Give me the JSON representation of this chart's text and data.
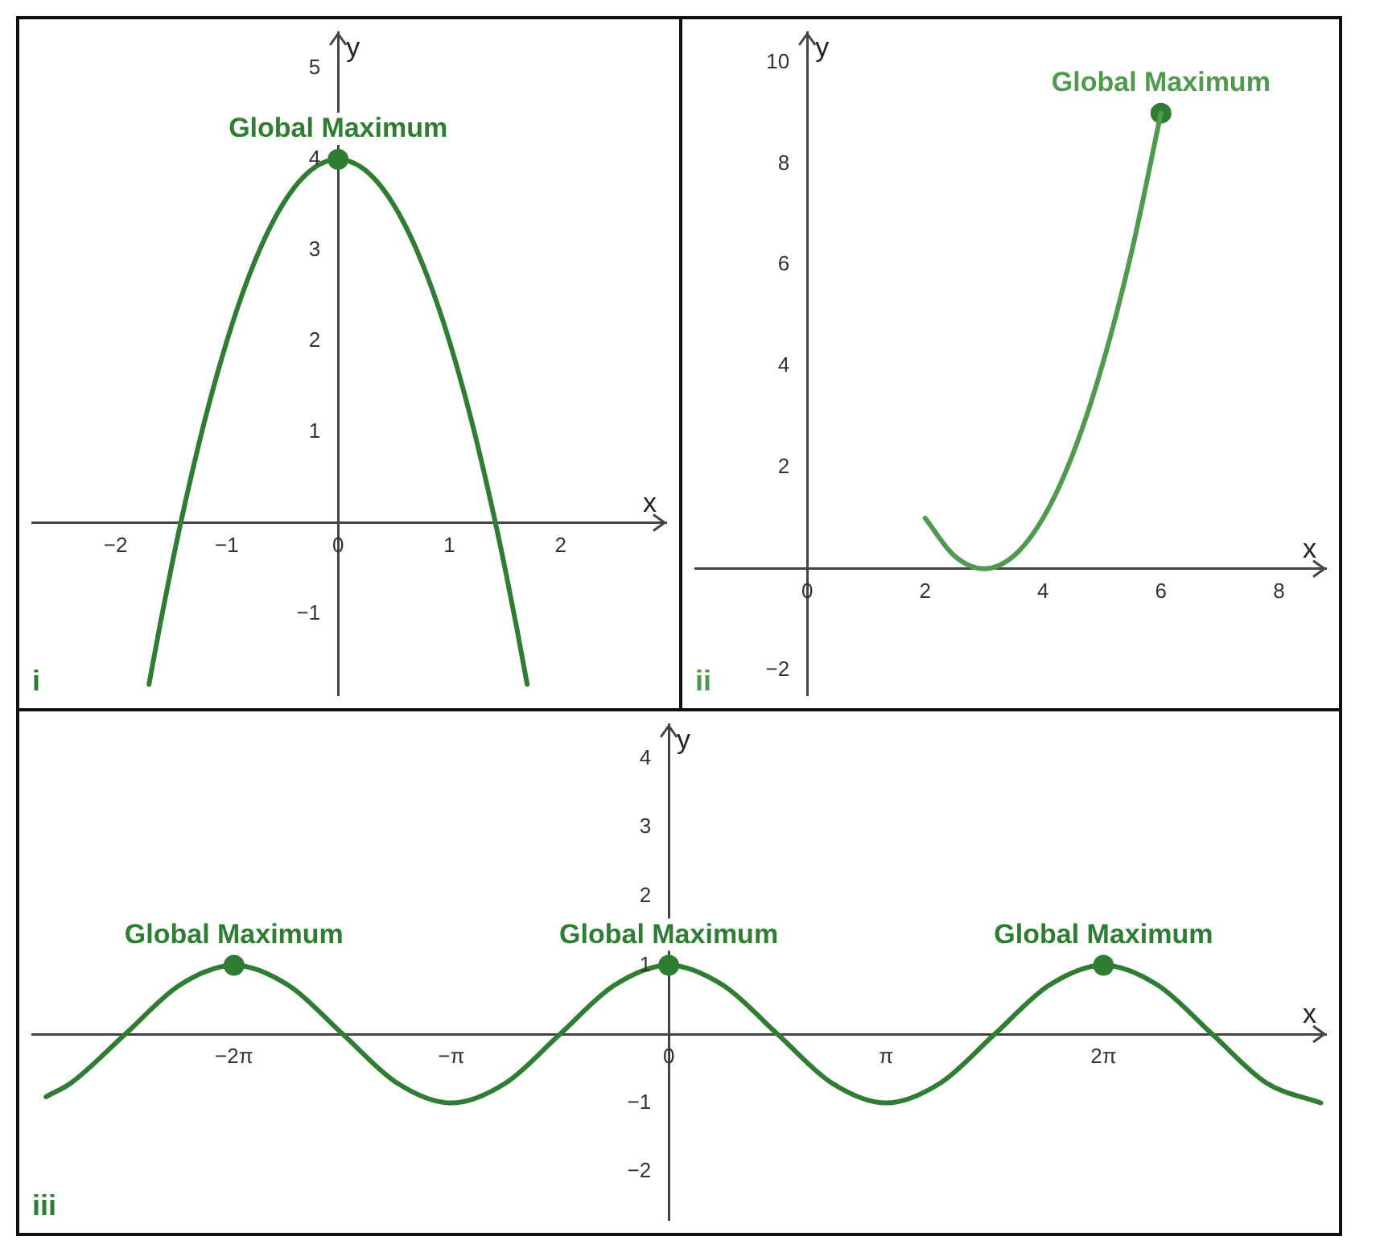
{
  "chart_data": [
    {
      "type": "line",
      "xlabel": "x",
      "ylabel": "y",
      "xlim": [
        -2.75,
        2.95
      ],
      "ylim": [
        -1.9,
        5.4
      ],
      "xticks": [
        -2,
        -1,
        0,
        1,
        2
      ],
      "yticks": [
        -1,
        1,
        2,
        3,
        4,
        5
      ],
      "series": [
        {
          "type": "line",
          "marker": "none",
          "color": "#2e7d32",
          "x": [
            -1.7,
            -1.6,
            -1.5,
            -1.4,
            -1.2,
            -1.0,
            -0.8,
            -0.6,
            -0.4,
            -0.2,
            0,
            0.2,
            0.4,
            0.6,
            0.8,
            1.0,
            1.2,
            1.4,
            1.5,
            1.6,
            1.7
          ],
          "values": [
            -1.78,
            -1.12,
            -0.5,
            0.08,
            1.12,
            2,
            2.72,
            3.28,
            3.68,
            3.92,
            4,
            3.92,
            3.68,
            3.28,
            2.72,
            2,
            1.12,
            0.08,
            -0.5,
            -1.12,
            -1.78
          ]
        },
        {
          "type": "scatter",
          "marker": "circle",
          "color": "#2e7d32",
          "x": [
            0
          ],
          "values": [
            4
          ]
        }
      ],
      "annotations": [
        {
          "text": "Global Maximum",
          "x": 0,
          "y": 4
        },
        "i"
      ]
    },
    {
      "type": "line",
      "xlabel": "x",
      "ylabel": "y",
      "xlim": [
        -1.9,
        8.8
      ],
      "ylim": [
        -2.5,
        10.6
      ],
      "xticks": [
        0,
        2,
        4,
        6,
        8
      ],
      "yticks": [
        -2,
        2,
        4,
        6,
        8,
        10
      ],
      "series": [
        {
          "type": "line",
          "marker": "none",
          "color": "#4f9a4f",
          "x": [
            2,
            2.5,
            3,
            3.5,
            4,
            4.5,
            5,
            5.5,
            6
          ],
          "values": [
            1,
            0.25,
            0,
            0.25,
            1,
            2.25,
            4,
            6.25,
            9
          ]
        },
        {
          "type": "scatter",
          "marker": "circle",
          "color": "#2e7d32",
          "x": [
            6
          ],
          "values": [
            9
          ]
        }
      ],
      "annotations": [
        {
          "text": "Global Maximum",
          "x": 6,
          "y": 9
        },
        "ii"
      ]
    },
    {
      "type": "line",
      "xlabel": "x",
      "ylabel": "y",
      "xlim": [
        -9.2,
        9.5
      ],
      "ylim": [
        -2.7,
        4.5
      ],
      "xticks": [
        {
          "value": -6.283,
          "label": "−2π"
        },
        {
          "value": -3.142,
          "label": "−π"
        },
        0,
        {
          "value": 3.142,
          "label": "π"
        },
        {
          "value": 6.283,
          "label": "2π"
        }
      ],
      "yticks": [
        -2,
        -1,
        1,
        2,
        3,
        4
      ],
      "series": [
        {
          "type": "line",
          "marker": "none",
          "color": "#2e7d32",
          "x": [
            -9.0,
            -8.639,
            -7.854,
            -7.069,
            -6.283,
            -5.498,
            -4.712,
            -3.927,
            -3.142,
            -2.356,
            -1.571,
            -0.785,
            0,
            0.785,
            1.571,
            2.356,
            3.142,
            3.927,
            4.712,
            5.498,
            6.283,
            7.069,
            7.854,
            8.639,
            9.425
          ],
          "values": [
            -0.91,
            -0.71,
            0,
            0.71,
            1,
            0.71,
            0,
            -0.71,
            -1,
            -0.71,
            0,
            0.71,
            1,
            0.71,
            0,
            -0.71,
            -1,
            -0.71,
            0,
            0.71,
            1,
            0.71,
            0,
            -0.71,
            -1
          ]
        },
        {
          "type": "scatter",
          "marker": "circle",
          "color": "#2e7d32",
          "x": [
            -6.283,
            0,
            6.283
          ],
          "values": [
            1,
            1,
            1
          ]
        }
      ],
      "annotations": [
        {
          "text": "Global Maximum",
          "x": -6.283,
          "y": 1
        },
        {
          "text": "Global Maximum",
          "x": 0,
          "y": 1
        },
        {
          "text": "Global Maximum",
          "x": 6.283,
          "y": 1
        },
        "iii"
      ]
    }
  ]
}
